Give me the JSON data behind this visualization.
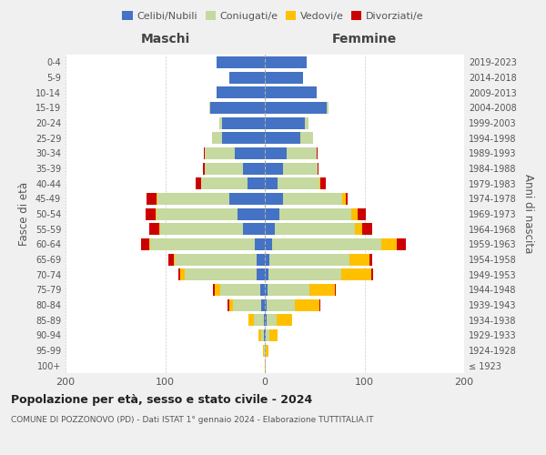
{
  "age_groups": [
    "100+",
    "95-99",
    "90-94",
    "85-89",
    "80-84",
    "75-79",
    "70-74",
    "65-69",
    "60-64",
    "55-59",
    "50-54",
    "45-49",
    "40-44",
    "35-39",
    "30-34",
    "25-29",
    "20-24",
    "15-19",
    "10-14",
    "5-9",
    "0-4"
  ],
  "birth_years": [
    "≤ 1923",
    "1924-1928",
    "1929-1933",
    "1934-1938",
    "1939-1943",
    "1944-1948",
    "1949-1953",
    "1954-1958",
    "1959-1963",
    "1964-1968",
    "1969-1973",
    "1974-1978",
    "1979-1983",
    "1984-1988",
    "1989-1993",
    "1994-1998",
    "1999-2003",
    "2004-2008",
    "2009-2013",
    "2014-2018",
    "2019-2023"
  ],
  "males": {
    "celibi": [
      0,
      0,
      1,
      1,
      4,
      5,
      8,
      8,
      10,
      22,
      27,
      36,
      17,
      22,
      30,
      43,
      43,
      55,
      48,
      36,
      48
    ],
    "coniugati": [
      0,
      1,
      3,
      10,
      28,
      40,
      72,
      82,
      105,
      83,
      82,
      72,
      47,
      38,
      30,
      10,
      3,
      1,
      0,
      0,
      0
    ],
    "vedovi": [
      0,
      1,
      2,
      5,
      4,
      5,
      5,
      1,
      1,
      1,
      1,
      1,
      0,
      0,
      0,
      0,
      0,
      0,
      0,
      0,
      0
    ],
    "divorziati": [
      0,
      0,
      0,
      0,
      1,
      2,
      2,
      6,
      8,
      10,
      10,
      10,
      5,
      2,
      1,
      0,
      0,
      0,
      0,
      0,
      0
    ]
  },
  "females": {
    "nubili": [
      0,
      0,
      1,
      2,
      2,
      3,
      4,
      5,
      7,
      10,
      15,
      18,
      13,
      18,
      22,
      36,
      40,
      62,
      52,
      38,
      42
    ],
    "coniugate": [
      0,
      1,
      4,
      10,
      28,
      42,
      73,
      80,
      110,
      80,
      72,
      60,
      42,
      35,
      30,
      12,
      4,
      2,
      0,
      0,
      0
    ],
    "vedove": [
      1,
      3,
      8,
      15,
      25,
      25,
      30,
      20,
      15,
      8,
      6,
      3,
      1,
      0,
      0,
      0,
      0,
      0,
      0,
      0,
      0
    ],
    "divorziate": [
      0,
      0,
      0,
      0,
      1,
      1,
      2,
      3,
      10,
      10,
      8,
      2,
      5,
      1,
      1,
      0,
      0,
      0,
      0,
      0,
      0
    ]
  },
  "color_celibi": "#4472c4",
  "color_coniugati": "#c5d9a0",
  "color_vedovi": "#ffc000",
  "color_divorziati": "#cc0000",
  "title": "Popolazione per età, sesso e stato civile - 2024",
  "subtitle": "COMUNE DI POZZONOVO (PD) - Dati ISTAT 1° gennaio 2024 - Elaborazione TUTTITALIA.IT",
  "xlabel_maschi": "Maschi",
  "xlabel_femmine": "Femmine",
  "ylabel_left": "Fasce di età",
  "ylabel_right": "Anni di nascita",
  "xlim": 200,
  "legend_labels": [
    "Celibi/Nubili",
    "Coniugati/e",
    "Vedovi/e",
    "Divorziati/e"
  ],
  "bg_color": "#f0f0f0",
  "plot_bg_color": "#ffffff"
}
